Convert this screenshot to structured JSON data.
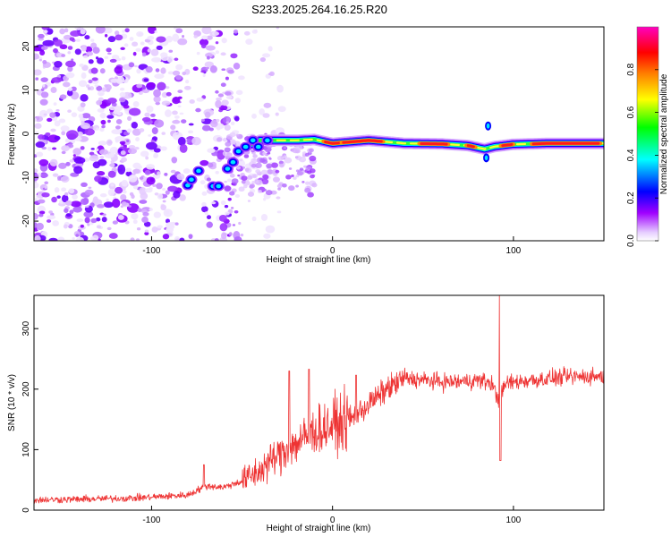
{
  "title": "S233.2025.264.16.25.R20",
  "chart_data": [
    {
      "type": "heatmap",
      "name": "spectrogram",
      "xlabel": "Height of straight line (km)",
      "ylabel": "Frequency (Hz)",
      "xlim": [
        -165,
        150
      ],
      "ylim": [
        -24.5,
        24.5
      ],
      "xticks": [
        -100,
        0,
        100
      ],
      "yticks": [
        -20,
        -10,
        0,
        10,
        20
      ],
      "xtick_labels": [
        "-100",
        "0",
        "100"
      ],
      "ytick_labels": [
        "-20",
        "-10",
        "0",
        "10",
        "20"
      ],
      "noise_region_x": [
        -165,
        -52
      ],
      "ridge": {
        "description": "dominant frequency track",
        "points": [
          {
            "x": -80,
            "y": -11.5
          },
          {
            "x": -75,
            "y": -8.5
          },
          {
            "x": -65,
            "y": -12
          },
          {
            "x": -55,
            "y": -7
          },
          {
            "x": -48,
            "y": -3
          },
          {
            "x": -40,
            "y": -1.5
          },
          {
            "x": -30,
            "y": -1.5
          },
          {
            "x": -20,
            "y": -1.5
          },
          {
            "x": -10,
            "y": -1.3
          },
          {
            "x": 0,
            "y": -2.2
          },
          {
            "x": 20,
            "y": -1.5
          },
          {
            "x": 40,
            "y": -2.2
          },
          {
            "x": 60,
            "y": -2.3
          },
          {
            "x": 75,
            "y": -2.7
          },
          {
            "x": 84,
            "y": -3.5
          },
          {
            "x": 90,
            "y": -2.9
          },
          {
            "x": 100,
            "y": -2.4
          },
          {
            "x": 120,
            "y": -2.2
          },
          {
            "x": 150,
            "y": -2.2
          }
        ],
        "hot_segments": [
          {
            "x0": -5,
            "x1": 5
          },
          {
            "x0": 5,
            "x1": 28
          },
          {
            "x0": 48,
            "x1": 64
          },
          {
            "x0": 74,
            "x1": 79
          },
          {
            "x0": 93,
            "x1": 100
          },
          {
            "x0": 110,
            "x1": 148
          }
        ]
      },
      "colorbar": {
        "label": "Normalized spectral amplitude",
        "range": [
          0,
          1
        ],
        "ticks": [
          0.0,
          0.2,
          0.4,
          0.6,
          0.8
        ],
        "tick_labels": [
          "0.0",
          "0.2",
          "0.4",
          "0.6",
          "0.8"
        ],
        "colors": [
          "#ffffff",
          "#e5ccff",
          "#a000ff",
          "#0000ff",
          "#00ffff",
          "#00ff00",
          "#ffff00",
          "#ff8000",
          "#ff0000",
          "#ff00c0"
        ]
      }
    },
    {
      "type": "line",
      "name": "snr",
      "xlabel": "Height of straight line (km)",
      "ylabel": "SNR (10 * v/v)",
      "xlim": [
        -165,
        150
      ],
      "ylim": [
        0,
        355
      ],
      "xticks": [
        -100,
        0,
        100
      ],
      "yticks": [
        0,
        100,
        200,
        300
      ],
      "xtick_labels": [
        "-100",
        "0",
        "100"
      ],
      "ytick_labels": [
        "0",
        "100",
        "200",
        "300"
      ],
      "color": "#ee3333",
      "series": {
        "name": "SNR",
        "x": [
          -165,
          -140,
          -110,
          -80,
          -70,
          -60,
          -50,
          -40,
          -35,
          -30,
          -25,
          -20,
          -15,
          -10,
          0,
          10,
          20,
          30,
          40,
          50,
          60,
          70,
          80,
          88,
          92,
          96,
          110,
          130,
          150
        ],
        "y": [
          17,
          18,
          20,
          25,
          40,
          38,
          48,
          65,
          80,
          90,
          100,
          110,
          120,
          130,
          140,
          150,
          175,
          200,
          218,
          215,
          212,
          212,
          215,
          210,
          180,
          210,
          215,
          220,
          222
        ],
        "spikes": [
          {
            "x": 92.5,
            "y": 355
          },
          {
            "x": 92.8,
            "y": 82
          },
          {
            "x": -71,
            "y": 75
          },
          {
            "x": -24,
            "y": 230
          },
          {
            "x": -13,
            "y": 233
          },
          {
            "x": 13,
            "y": 223
          }
        ]
      }
    }
  ]
}
